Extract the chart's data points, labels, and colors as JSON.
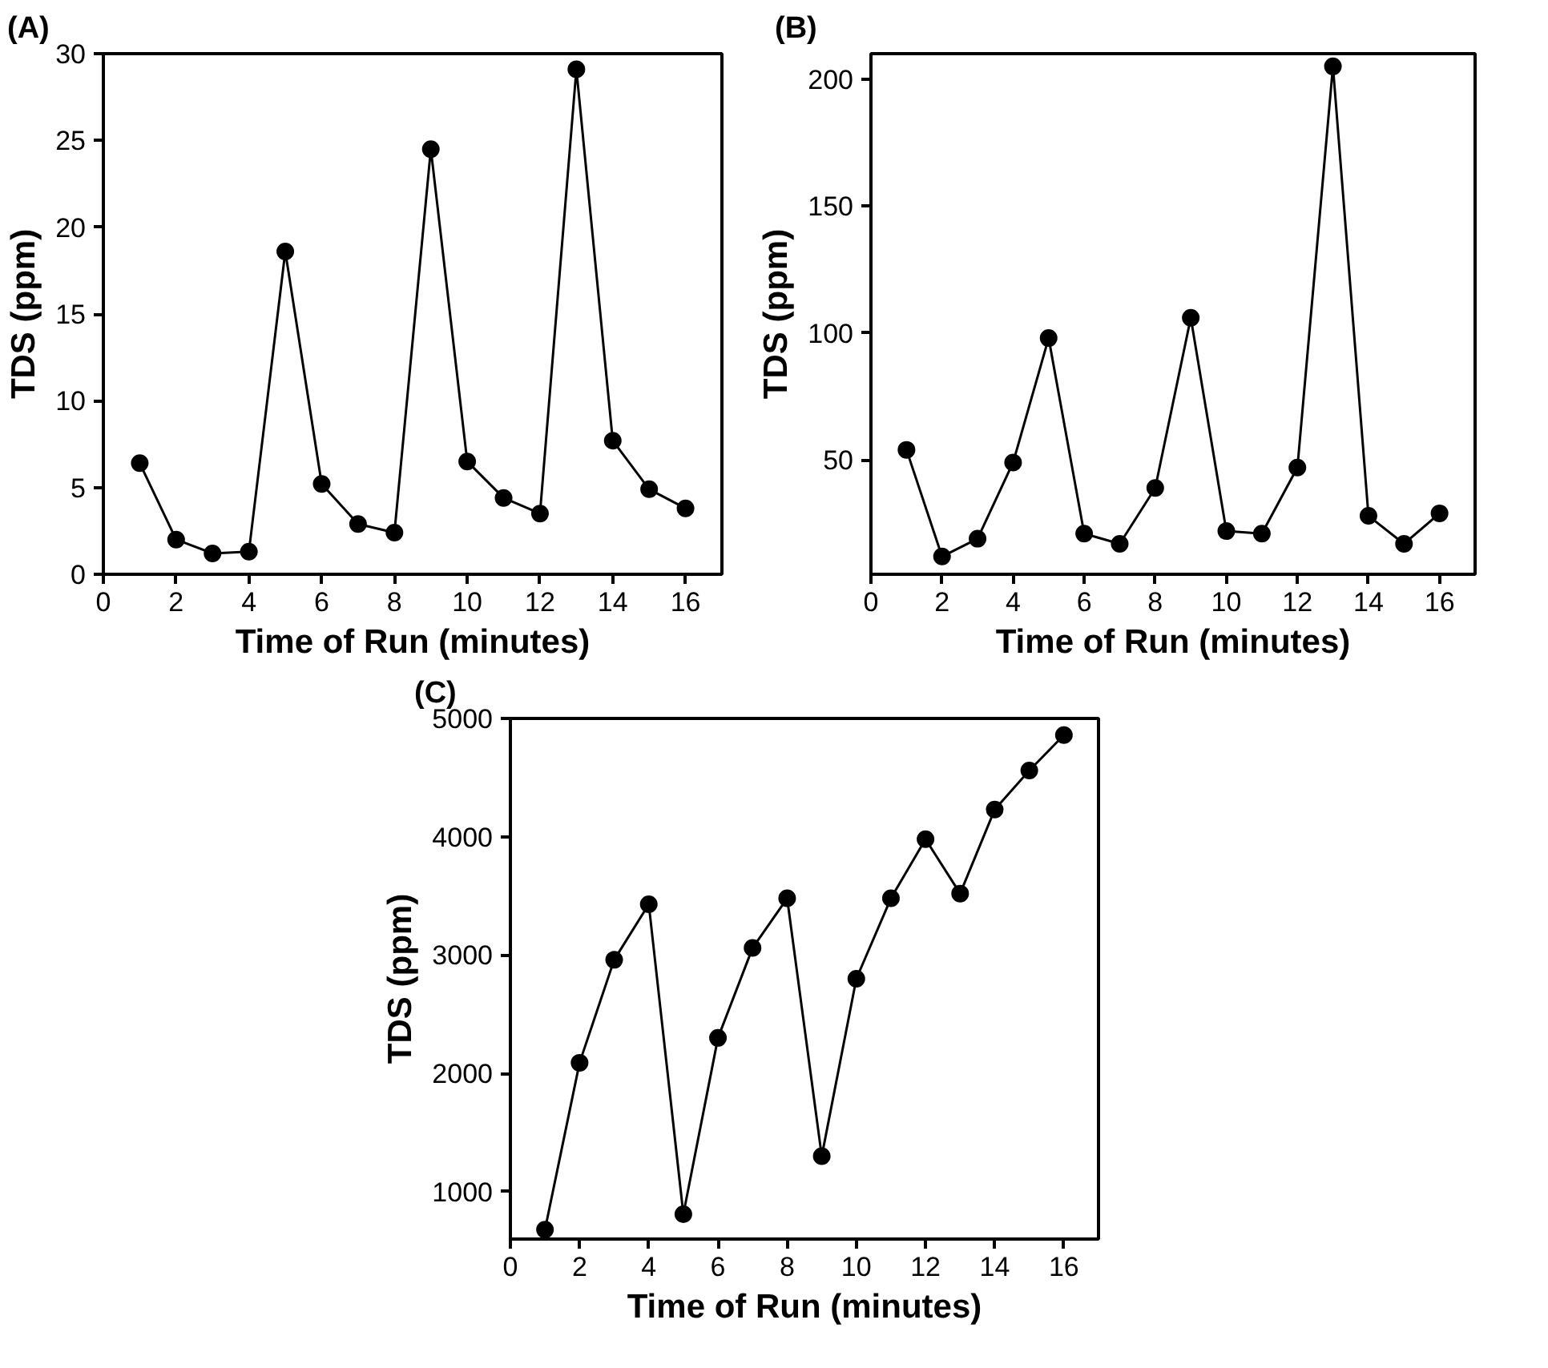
{
  "chart_data": [
    {
      "type": "line",
      "title": "(A)",
      "xlabel": "Time of Run (minutes)",
      "ylabel": "TDS (ppm)",
      "x": [
        1,
        2,
        3,
        4,
        5,
        6,
        7,
        8,
        9,
        10,
        11,
        12,
        13,
        14,
        15,
        16
      ],
      "series": [
        {
          "color": "#000000",
          "values": [
            6.4,
            2.0,
            1.2,
            1.3,
            18.6,
            5.2,
            2.9,
            2.4,
            24.5,
            6.5,
            4.4,
            3.5,
            29.1,
            7.7,
            4.9,
            3.8
          ]
        }
      ],
      "xlim": [
        0,
        17
      ],
      "xticks": [
        0,
        2,
        4,
        6,
        8,
        10,
        12,
        14,
        16
      ],
      "ylim": [
        0,
        30
      ],
      "yticks": [
        0,
        5,
        10,
        15,
        20,
        25,
        30
      ],
      "grid": false,
      "marker": "circle",
      "line_style": "solid"
    },
    {
      "type": "line",
      "title": "(B)",
      "xlabel": "Time of Run (minutes)",
      "ylabel": "TDS (ppm)",
      "x": [
        1,
        2,
        3,
        4,
        5,
        6,
        7,
        8,
        9,
        10,
        11,
        12,
        13,
        14,
        15,
        16
      ],
      "series": [
        {
          "color": "#000000",
          "values": [
            54,
            12,
            19,
            49,
            98,
            21,
            17,
            39,
            106,
            22,
            21,
            47,
            205,
            28,
            17,
            29
          ]
        }
      ],
      "xlim": [
        0,
        17
      ],
      "xticks": [
        0,
        2,
        4,
        6,
        8,
        10,
        12,
        14,
        16
      ],
      "ylim": [
        5,
        210
      ],
      "yticks": [
        50,
        100,
        150,
        200
      ],
      "grid": false,
      "marker": "circle",
      "line_style": "solid"
    },
    {
      "type": "line",
      "title": "(C)",
      "xlabel": "Time of Run (minutes)",
      "ylabel": "TDS (ppm)",
      "x": [
        1,
        2,
        3,
        4,
        5,
        6,
        7,
        8,
        9,
        10,
        11,
        12,
        13,
        14,
        15,
        16
      ],
      "series": [
        {
          "color": "#000000",
          "values": [
            680,
            2090,
            2960,
            3430,
            810,
            2300,
            3060,
            3480,
            1300,
            2800,
            3480,
            3980,
            3520,
            4230,
            4560,
            4860
          ]
        }
      ],
      "xlim": [
        0,
        17
      ],
      "xticks": [
        0,
        2,
        4,
        6,
        8,
        10,
        12,
        14,
        16
      ],
      "ylim": [
        600,
        5000
      ],
      "yticks": [
        1000,
        2000,
        3000,
        4000,
        5000
      ],
      "grid": false,
      "marker": "circle",
      "line_style": "solid"
    }
  ]
}
